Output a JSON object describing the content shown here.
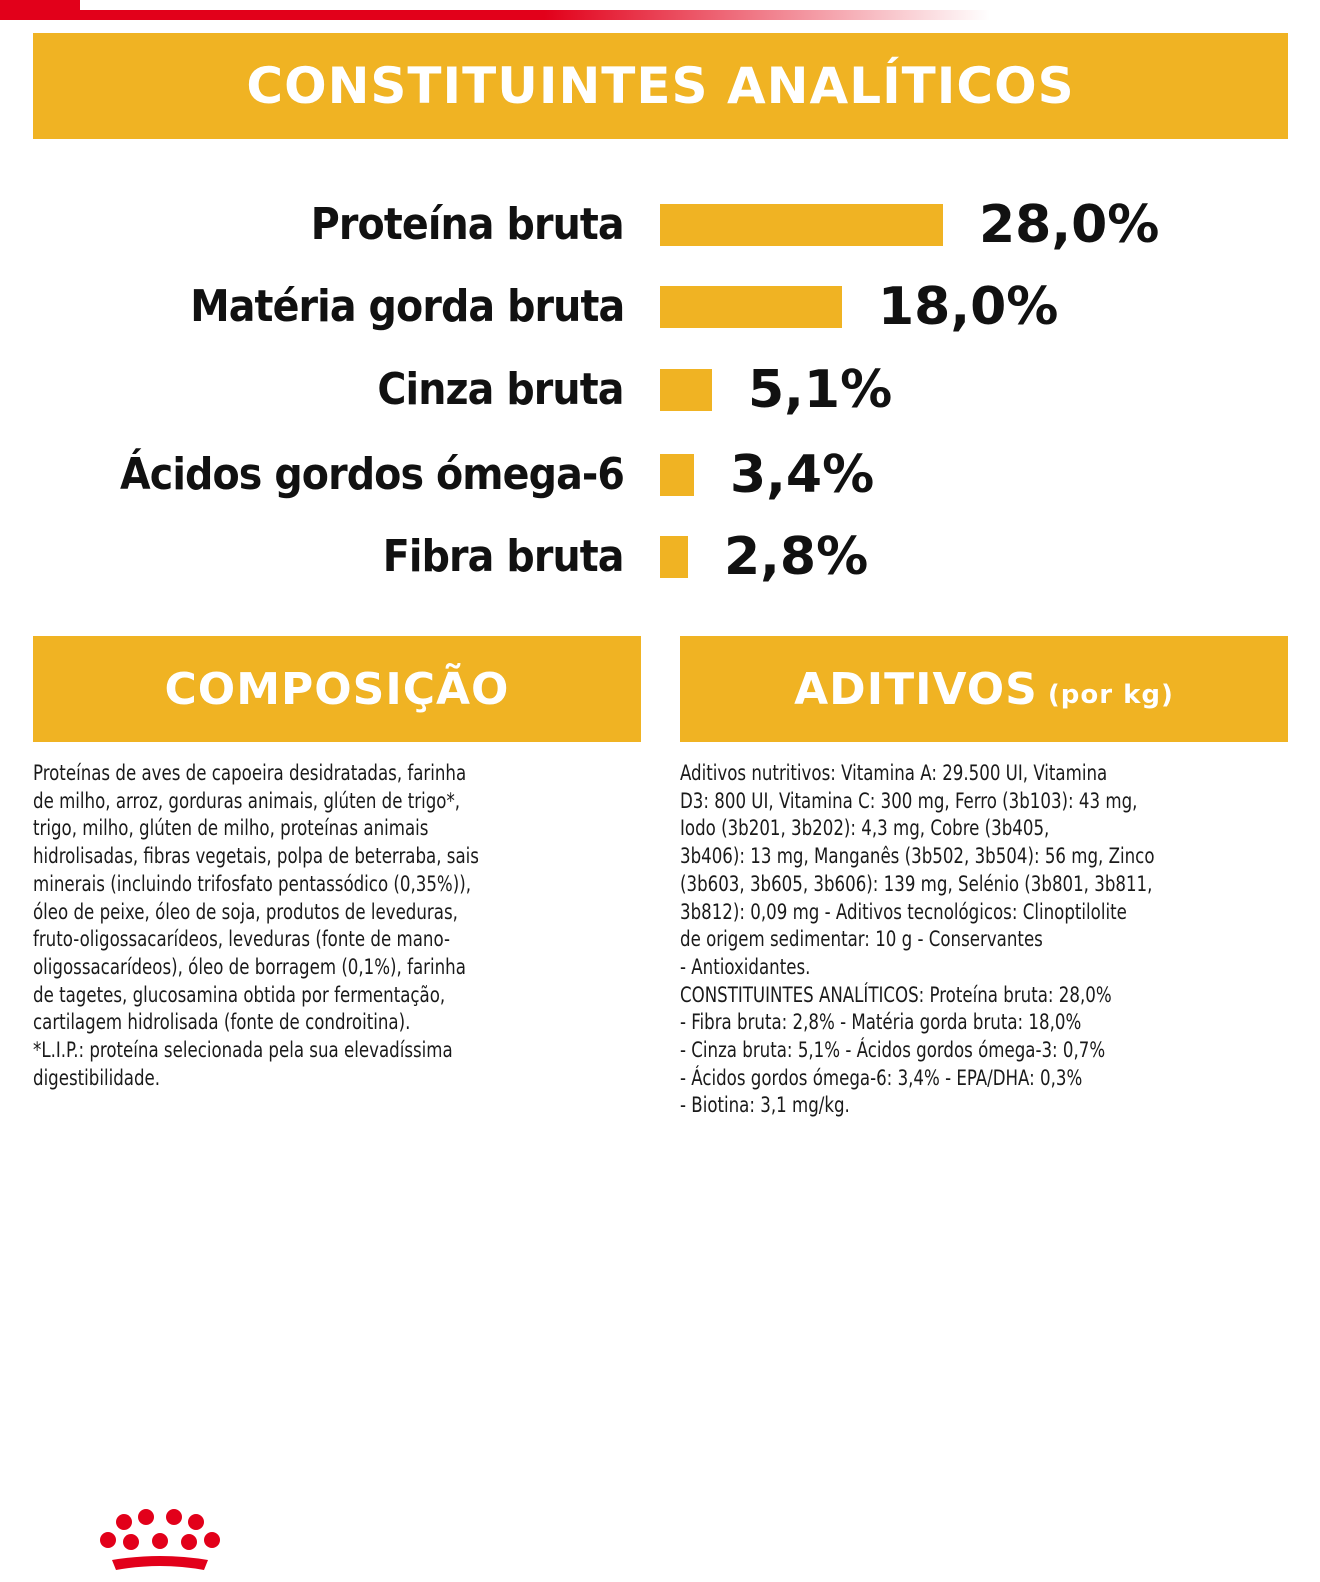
{
  "header": {
    "title": "CONSTITUINTES ANALÍTICOS"
  },
  "analytics": [
    {
      "label": "Proteína bruta",
      "value": "28,0%",
      "amount": 28.0
    },
    {
      "label": "Matéria gorda bruta",
      "value": "18,0%",
      "amount": 18.0
    },
    {
      "label": "Cinza bruta",
      "value": "5,1%",
      "amount": 5.1
    },
    {
      "label": "Ácidos gordos ómega-6",
      "value": "3,4%",
      "amount": 3.4
    },
    {
      "label": "Fibra bruta",
      "value": "2,8%",
      "amount": 2.8
    }
  ],
  "composition": {
    "title": "COMPOSIÇÃO",
    "lines": [
      "Proteínas de aves de capoeira desidratadas, farinha",
      "de milho, arroz, gorduras animais, glúten de trigo*,",
      "trigo, milho, glúten de milho, proteínas animais",
      "hidrolisadas, fibras vegetais, polpa de beterraba, sais",
      "minerais (incluindo trifosfato pentassódico (0,35%)),",
      "óleo de peixe, óleo de soja, produtos de leveduras,",
      "fruto-oligossacarídeos, leveduras (fonte de mano-",
      "oligossacarídeos), óleo de borragem (0,1%), farinha",
      "de tagetes, glucosamina obtida por fermentação,",
      "cartilagem hidrolisada (fonte de condroitina).",
      "*L.I.P.: proteína selecionada pela sua elevadíssima",
      "digestibilidade."
    ]
  },
  "additives": {
    "title": "ADITIVOS",
    "subtitle": "(por kg)",
    "lines": [
      "Aditivos nutritivos: Vitamina A: 29.500 UI, Vitamina",
      "D3: 800 UI, Vitamina C: 300 mg, Ferro (3b103): 43 mg,",
      "Iodo (3b201, 3b202): 4,3 mg, Cobre (3b405,",
      "3b406): 13 mg, Manganês (3b502, 3b504): 56 mg, Zinco",
      "(3b603, 3b605, 3b606): 139 mg, Selénio (3b801, 3b811,",
      "3b812): 0,09 mg - Aditivos tecnológicos: Clinoptilolite",
      "de origem sedimentar: 10 g - Conservantes",
      "- Antioxidantes.",
      "CONSTITUINTES ANALÍTICOS: Proteína bruta: 28,0%",
      "- Fibra bruta: 2,8% - Matéria gorda bruta: 18,0%",
      "- Cinza bruta: 5,1% - Ácidos gordos ómega-3: 0,7%",
      "- Ácidos gordos ómega-6: 3,4% - EPA/DHA: 0,3%",
      "- Biotina: 3,1 mg/kg."
    ]
  },
  "colors": {
    "accent": "#f0b323",
    "brand_red": "#e2001a"
  },
  "footer": {
    "logo": "royal-canin-crown-icon"
  }
}
